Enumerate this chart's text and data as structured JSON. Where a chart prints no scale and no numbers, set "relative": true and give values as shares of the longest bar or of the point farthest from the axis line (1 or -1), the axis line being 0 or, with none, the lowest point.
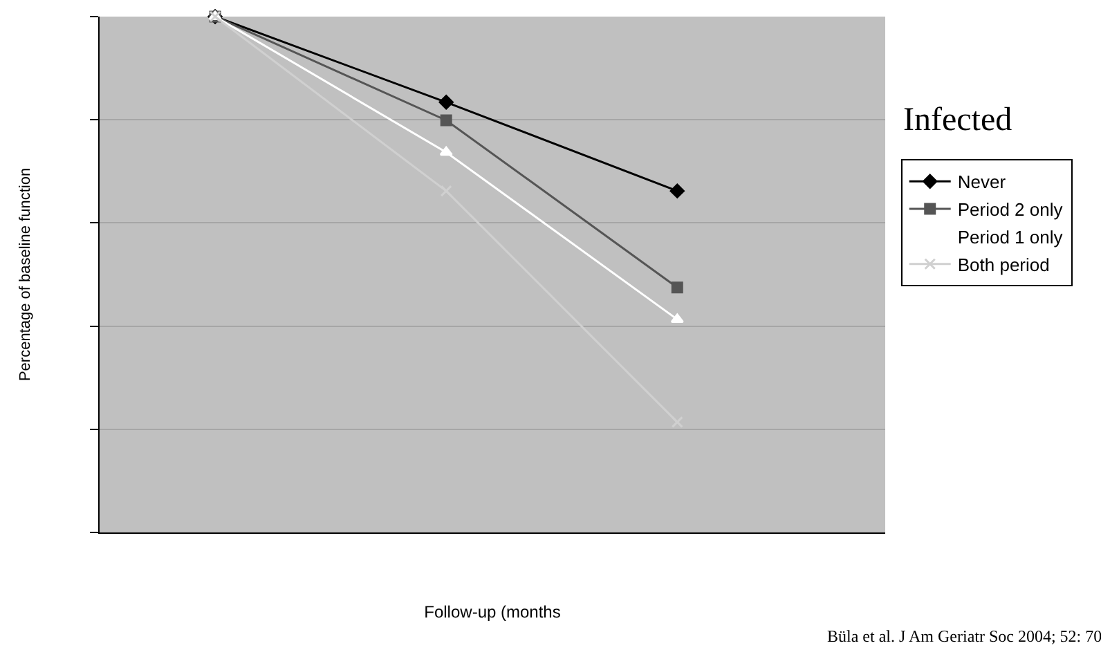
{
  "chart_data": {
    "type": "line",
    "title": "Infected",
    "xlabel": "Follow-up (months",
    "ylabel": "Percentage of baseline function",
    "relative": true,
    "categories": [
      null,
      null,
      null
    ],
    "grid": "y",
    "legend": "right",
    "annotations": [
      "Büla et al. J Am Geriatr Soc 2004; 52: 70"
    ],
    "series": [
      {
        "name": "Never",
        "color": "#000000",
        "marker": "diamond",
        "values": [
          1,
          0.834,
          0.662
        ]
      },
      {
        "name": "Period 2 only",
        "color": "#555555",
        "marker": "square",
        "values": [
          1,
          0.799,
          0.475
        ]
      },
      {
        "name": "Period 1 only",
        "color": "#ffffff",
        "marker": "triangle",
        "values": [
          1,
          0.737,
          0.413
        ]
      },
      {
        "name": "Both period",
        "color": "#d0d0d0",
        "marker": "cross",
        "values": [
          1,
          0.662,
          0.214
        ]
      }
    ]
  }
}
